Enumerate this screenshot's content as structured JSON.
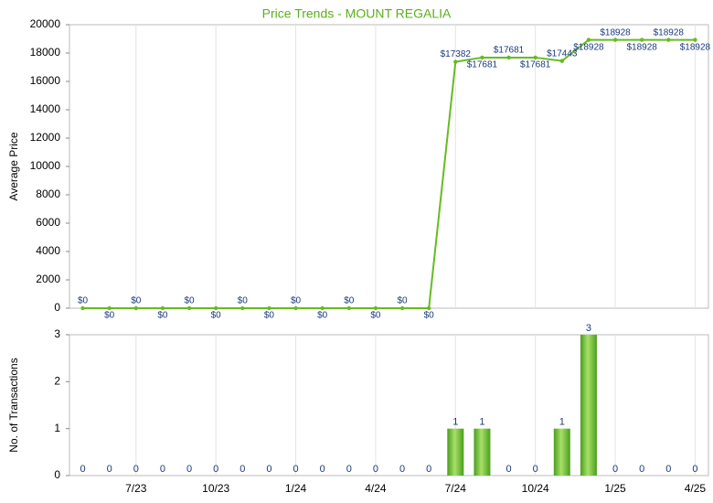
{
  "chart_data": [
    {
      "type": "line",
      "title": "Price Trends - MOUNT REGALIA",
      "y_label": "Average Price",
      "categories": [
        null,
        null,
        "7/23",
        null,
        null,
        "10/23",
        null,
        null,
        "1/24",
        null,
        null,
        "4/24",
        null,
        null,
        "7/24",
        null,
        null,
        "10/24",
        null,
        null,
        "1/25",
        null,
        null,
        "4/25"
      ],
      "values": [
        0,
        0,
        0,
        0,
        0,
        0,
        0,
        0,
        0,
        0,
        0,
        0,
        0,
        0,
        17382,
        17681,
        17681,
        17681,
        17443,
        18928,
        18928,
        18928,
        18928,
        18928
      ],
      "value_labels": [
        "$0",
        "$0",
        "$0",
        "$0",
        "$0",
        "$0",
        "$0",
        "$0",
        "$0",
        "$0",
        "$0",
        "$0",
        "$0",
        "$0",
        "$17382",
        "$17681",
        "$17681",
        "$17681",
        "$17443",
        "$18928",
        "$18928",
        "$18928",
        "$18928",
        "$18928"
      ],
      "color": "#66bb22",
      "ylim": [
        0,
        20000
      ],
      "yticks": [
        0,
        2000,
        4000,
        6000,
        8000,
        10000,
        12000,
        14000,
        16000,
        18000,
        20000
      ],
      "grid": true
    },
    {
      "type": "bar",
      "y_label": "No. of Transactions",
      "categories": [
        null,
        null,
        "7/23",
        null,
        null,
        "10/23",
        null,
        null,
        "1/24",
        null,
        null,
        "4/24",
        null,
        null,
        "7/24",
        null,
        null,
        "10/24",
        null,
        null,
        "1/25",
        null,
        null,
        "4/25"
      ],
      "values": [
        0,
        0,
        0,
        0,
        0,
        0,
        0,
        0,
        0,
        0,
        0,
        0,
        0,
        0,
        1,
        1,
        0,
        0,
        1,
        3,
        0,
        0,
        0,
        0
      ],
      "color": "#5cb82a",
      "ylim": [
        0,
        3
      ],
      "yticks": [
        0,
        1,
        2,
        3
      ],
      "grid": true
    }
  ]
}
